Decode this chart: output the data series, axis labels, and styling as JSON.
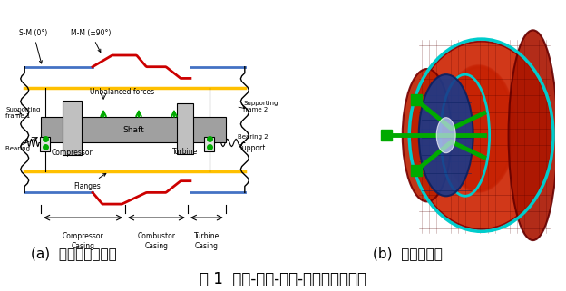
{
  "fig_width": 6.24,
  "fig_height": 3.21,
  "dpi": 100,
  "bg_color": "#ffffff",
  "caption_a": "(a)  耦合模型示意图",
  "caption_b": "(b)  有限元模型",
  "main_caption": "图 1  转子-支承-机匣-安装节耦合模型",
  "caption_fontsize": 11,
  "main_caption_fontsize": 12,
  "label_sm": "S-M (0°)",
  "label_mm": "M-M (±90°)",
  "label_sf1": "Supporting\nframe 1",
  "label_sf2": "Supporting\nframe 2",
  "label_b1": "Bearing 1",
  "label_b2": "Bearing 2",
  "label_shaft": "Shaft",
  "label_ub": "Unbalanced forces",
  "label_comp": "Compressor",
  "label_turb": "Turbine",
  "label_flanges": "Flanges",
  "label_support": "Support",
  "label_cc": "Compressor\nCasing",
  "label_comb": "Combustor\nCasing",
  "label_tc": "Turbine\nCasing",
  "colors": {
    "red": "#cc0000",
    "blue_line": "#4472c4",
    "yellow": "#ffc000",
    "gray": "#808080",
    "green": "#00aa00",
    "light_gray": "#d0d0d0",
    "dark_gray": "#505050",
    "shaft_gray": "#a0a0a0"
  }
}
